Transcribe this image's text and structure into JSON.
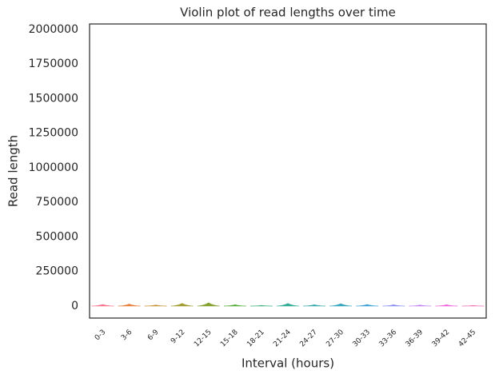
{
  "chart_data": {
    "type": "violin",
    "title": "Violin plot of read lengths over time",
    "x_label": "Interval (hours)",
    "y_label": "Read length",
    "categories": [
      "0-3",
      "3-6",
      "6-9",
      "9-12",
      "12-15",
      "15-18",
      "18-21",
      "21-24",
      "24-27",
      "27-30",
      "30-33",
      "33-36",
      "36-39",
      "39-42",
      "42-45"
    ],
    "values": [
      12000,
      15000,
      8000,
      20000,
      25000,
      10000,
      5000,
      20000,
      10000,
      18000,
      12000,
      10000,
      8000,
      10000,
      5000
    ],
    "colors": [
      "#f77189",
      "#e7803a",
      "#c6922f",
      "#a39c31",
      "#86a331",
      "#50ab32",
      "#34ae79",
      "#35ab95",
      "#37a8a9",
      "#39a6bd",
      "#3ca2d6",
      "#8b8ff2",
      "#c381f4",
      "#f061dd",
      "#f56db3"
    ],
    "ylim": [
      -86700,
      2040000
    ],
    "yticks": [
      0,
      250000,
      500000,
      750000,
      1000000,
      1250000,
      1500000,
      1750000,
      2000000
    ]
  }
}
